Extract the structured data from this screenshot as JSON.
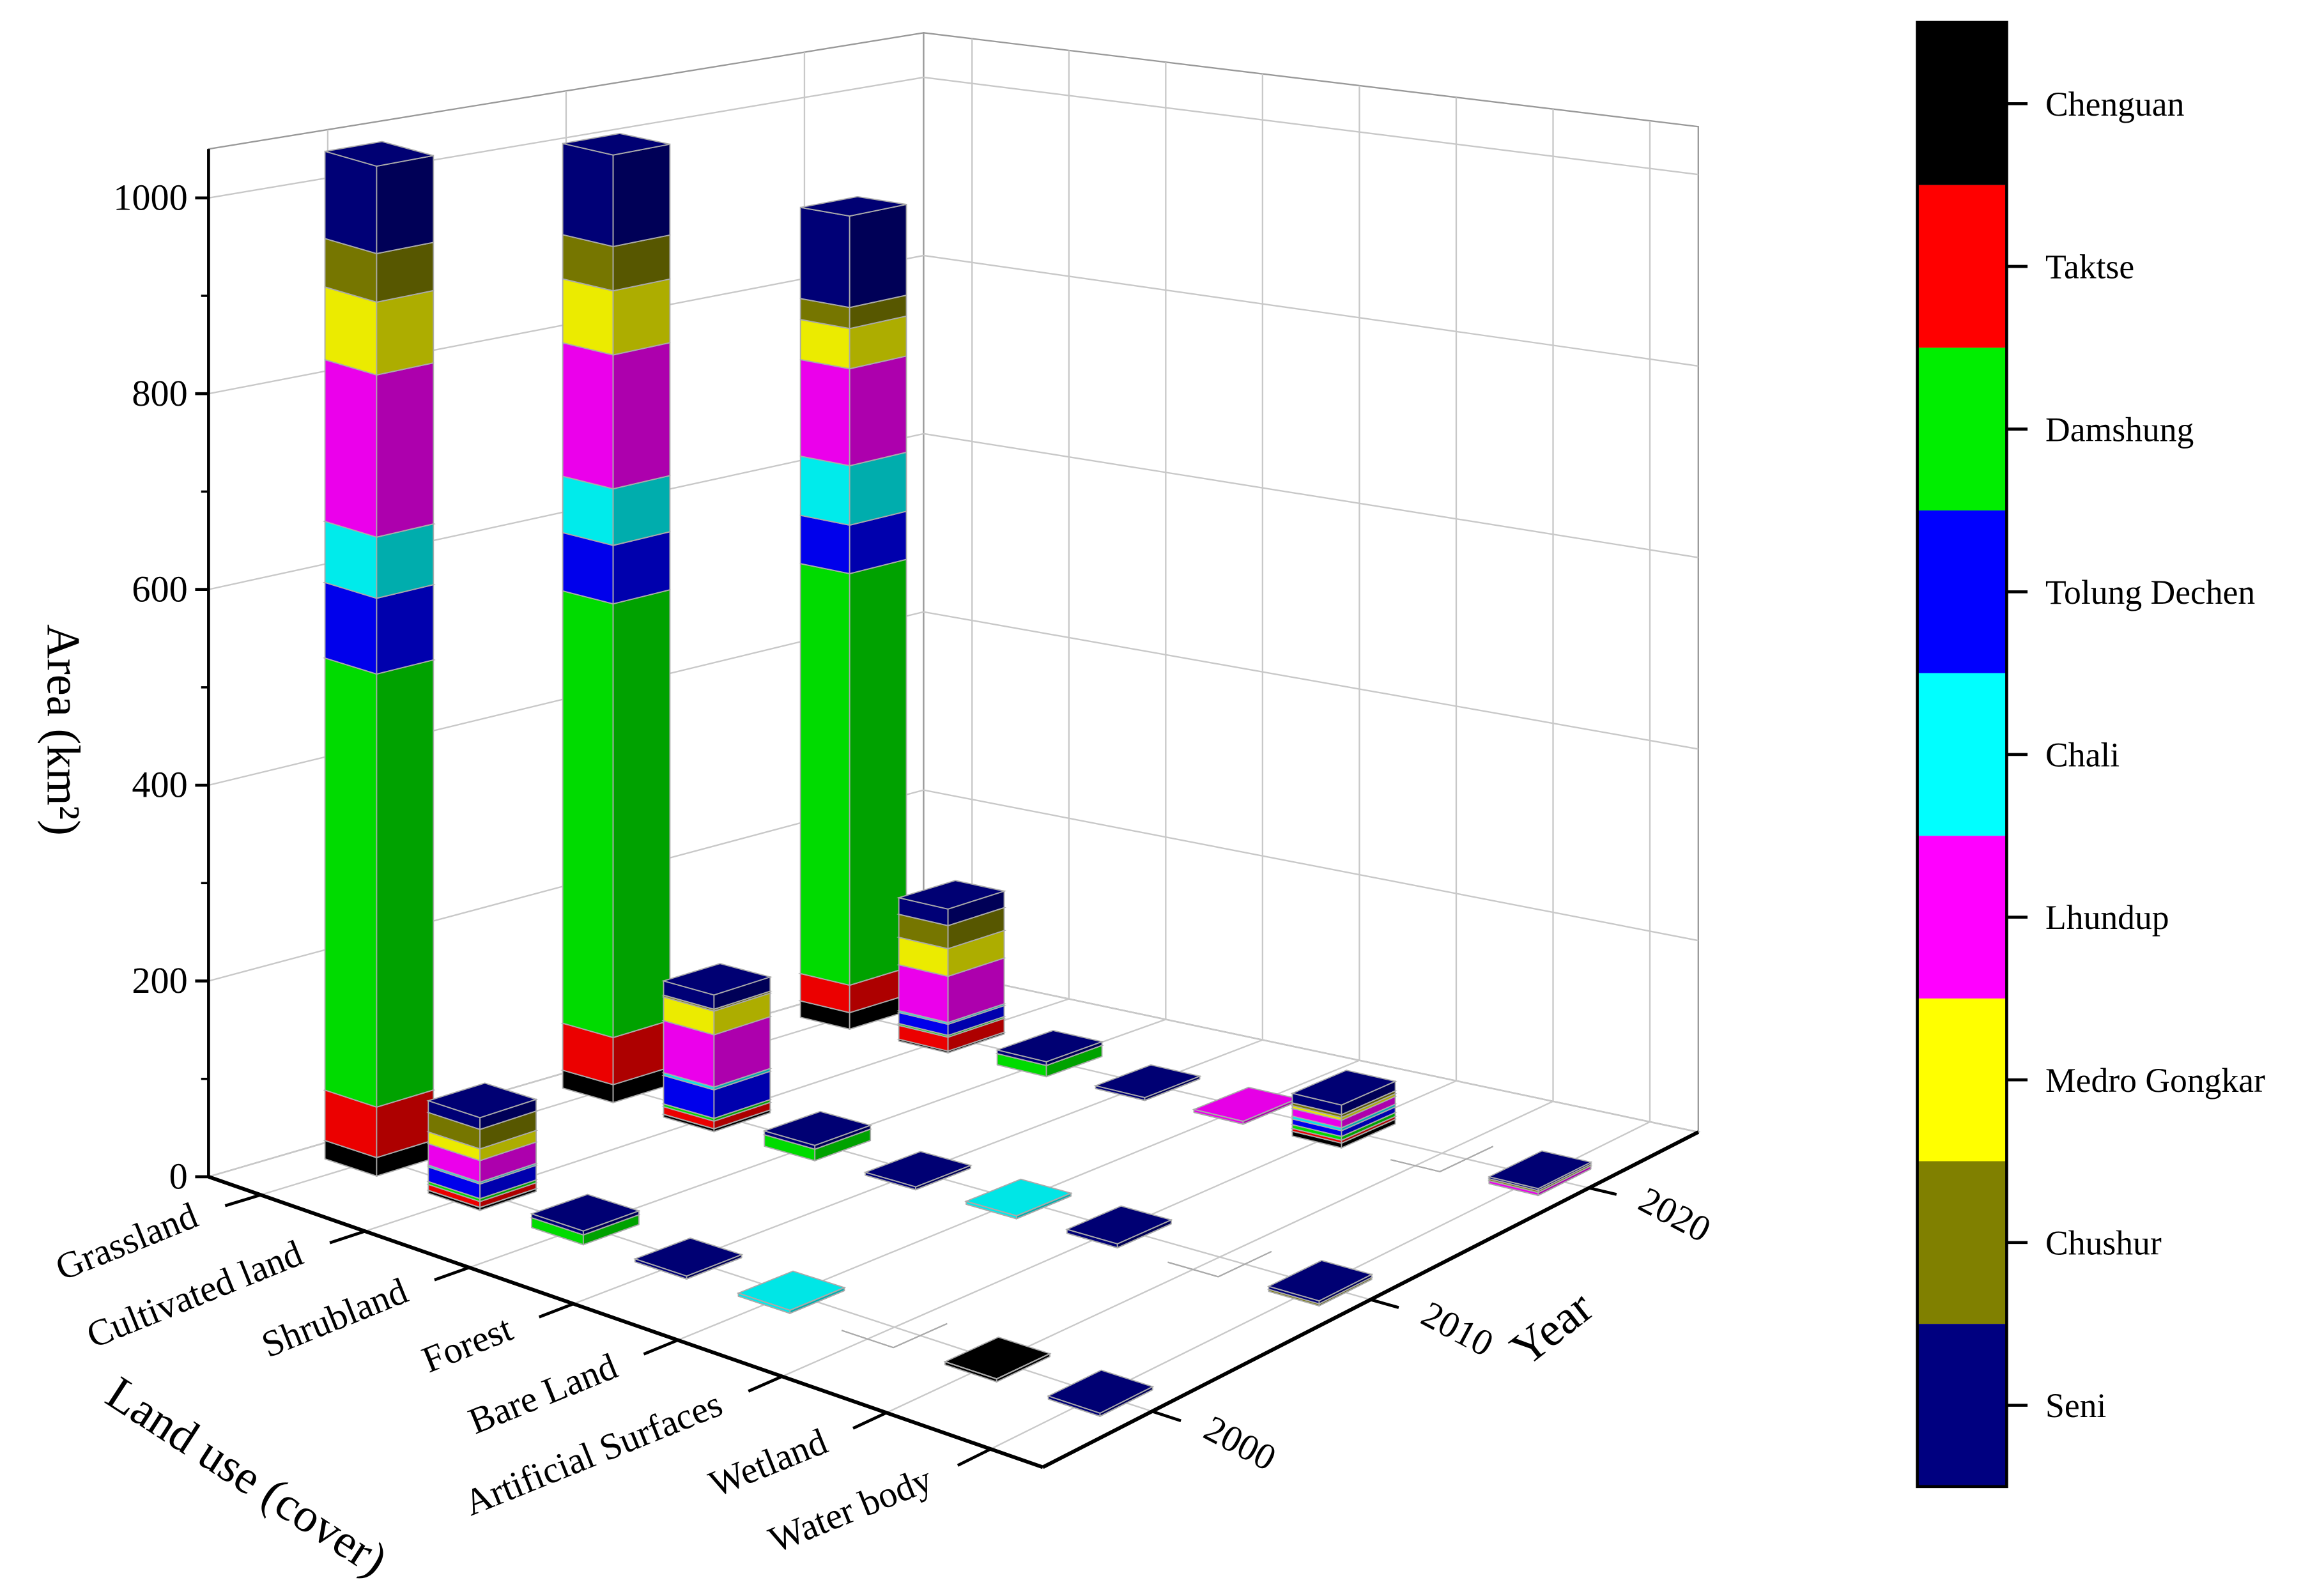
{
  "chart_data": {
    "type": "bar3d",
    "z_label": "Area (km²)",
    "x_label": "Land use (cover)",
    "y_label": "Year",
    "categories": [
      "Grassland",
      "Cultivated land",
      "Shrubland",
      "Forest",
      "Bare Land",
      "Artificial Surfaces",
      "Wetland",
      "Water body"
    ],
    "years": [
      "2000",
      "2010",
      "2020"
    ],
    "zlim": [
      0,
      1050
    ],
    "zticks": [
      0,
      200,
      400,
      600,
      800,
      1000
    ],
    "grid": true,
    "series": [
      {
        "name": "Chenguan",
        "color": "#000000",
        "values": [
          [
            19,
            19,
            18
          ],
          [
            3,
            3,
            2
          ],
          [
            0,
            0,
            0
          ],
          [
            0,
            0,
            0
          ],
          [
            0,
            0,
            0
          ],
          [
            0,
            0,
            5
          ],
          [
            3,
            0,
            0
          ],
          [
            0,
            0,
            0
          ]
        ]
      },
      {
        "name": "Taktse",
        "color": "#ff0000",
        "values": [
          [
            52,
            50,
            30
          ],
          [
            6,
            8,
            15
          ],
          [
            0,
            0,
            0
          ],
          [
            0,
            0,
            0
          ],
          [
            0,
            0,
            0
          ],
          [
            0,
            0,
            3
          ],
          [
            0,
            0,
            0
          ],
          [
            0,
            0,
            0
          ]
        ]
      },
      {
        "name": "Damshung",
        "color": "#00ee00",
        "values": [
          [
            446,
            460,
            450
          ],
          [
            3,
            3,
            2
          ],
          [
            10,
            12,
            12
          ],
          [
            0,
            0,
            0
          ],
          [
            0,
            0,
            0
          ],
          [
            0,
            0,
            4
          ],
          [
            0,
            0,
            0
          ],
          [
            0,
            0,
            0
          ]
        ]
      },
      {
        "name": "Tolung Dechen",
        "color": "#0000ff",
        "values": [
          [
            78,
            62,
            53
          ],
          [
            15,
            30,
            12
          ],
          [
            0,
            0,
            0
          ],
          [
            0,
            0,
            0
          ],
          [
            0,
            0,
            0
          ],
          [
            0,
            0,
            6
          ],
          [
            0,
            0,
            0
          ],
          [
            0,
            0,
            0
          ]
        ]
      },
      {
        "name": "Chali",
        "color": "#00ffff",
        "values": [
          [
            63,
            60,
            65
          ],
          [
            2,
            3,
            2
          ],
          [
            0,
            0,
            0
          ],
          [
            0,
            0,
            0
          ],
          [
            3,
            3,
            0
          ],
          [
            0,
            0,
            3
          ],
          [
            0,
            0,
            0
          ],
          [
            0,
            0,
            0
          ]
        ]
      },
      {
        "name": "Lhundup",
        "color": "#ff00ff",
        "values": [
          [
            167,
            142,
            106
          ],
          [
            22,
            55,
            50
          ],
          [
            0,
            0,
            0
          ],
          [
            0,
            0,
            0
          ],
          [
            0,
            0,
            3
          ],
          [
            0,
            0,
            8
          ],
          [
            0,
            0,
            0
          ],
          [
            0,
            0,
            3
          ]
        ]
      },
      {
        "name": "Medro Gongkar",
        "color": "#ffff00",
        "values": [
          [
            75,
            68,
            44
          ],
          [
            12,
            25,
            30
          ],
          [
            0,
            0,
            0
          ],
          [
            0,
            0,
            0
          ],
          [
            0,
            0,
            0
          ],
          [
            0,
            0,
            3
          ],
          [
            0,
            0,
            0
          ],
          [
            0,
            0,
            0
          ]
        ]
      },
      {
        "name": "Chushur",
        "color": "#808000",
        "values": [
          [
            50,
            47,
            23
          ],
          [
            20,
            2,
            25
          ],
          [
            0,
            0,
            0
          ],
          [
            0,
            0,
            0
          ],
          [
            0,
            0,
            0
          ],
          [
            0,
            0,
            3
          ],
          [
            0,
            0,
            0
          ],
          [
            0,
            2,
            2
          ]
        ]
      },
      {
        "name": "Seni",
        "color": "#000080",
        "values": [
          [
            90,
            97,
            100
          ],
          [
            12,
            15,
            18
          ],
          [
            4,
            4,
            4
          ],
          [
            3,
            3,
            3
          ],
          [
            0,
            0,
            0
          ],
          [
            0,
            4,
            10
          ],
          [
            0,
            0,
            0
          ],
          [
            3,
            3,
            2
          ]
        ]
      }
    ]
  }
}
